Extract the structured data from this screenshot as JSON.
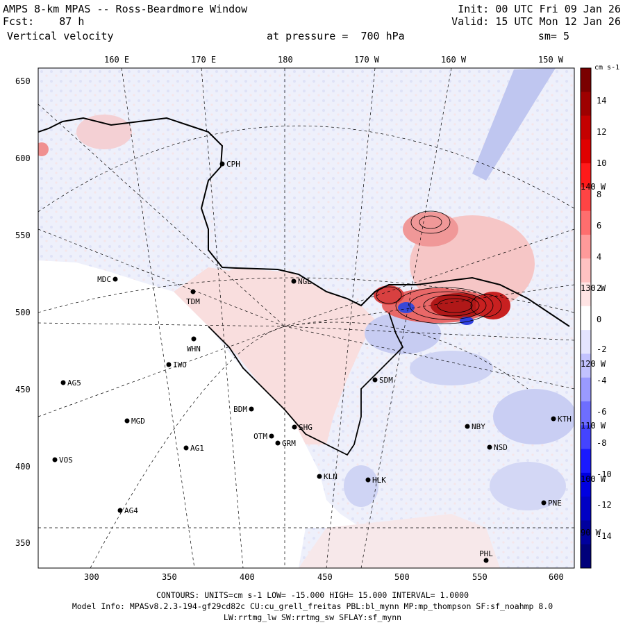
{
  "header": {
    "title": "AMPS 8-km MPAS -- Ross-Beardmore Window",
    "fcst": "Fcst:    87 h",
    "field": "Vertical velocity",
    "init": "Init: 00 UTC Fri 09 Jan 26",
    "valid": "Valid: 15 UTC Mon 12 Jan 26",
    "pressure": "at pressure =  700 hPa",
    "smoothing": "sm= 5"
  },
  "top_lon_labels": [
    "160 E",
    "170 E",
    "180",
    "170 W",
    "160 W",
    "150 W"
  ],
  "right_lon_labels": [
    "140 W",
    "130 W",
    "120 W",
    "110 W",
    "100 W",
    "90 W"
  ],
  "y_ticks": [
    "650",
    "600",
    "550",
    "500",
    "450",
    "400",
    "350"
  ],
  "x_ticks": [
    "300",
    "350",
    "400",
    "450",
    "500",
    "550",
    "600"
  ],
  "colorbar": {
    "units": "cm s-1",
    "labels": [
      "14",
      "12",
      "10",
      "8",
      "6",
      "4",
      "2",
      "0",
      "-2",
      "-4",
      "-6",
      "-8",
      "-10",
      "-12",
      "-14"
    ],
    "colors": [
      "#7a0000",
      "#9e0000",
      "#c40000",
      "#e00000",
      "#ff1a1a",
      "#ff4444",
      "#ff6e6e",
      "#ff9a9a",
      "#ffc2c2",
      "#ffe4e4",
      "#ffffff",
      "#e4e4ff",
      "#c2c2ff",
      "#9a9aff",
      "#6e6eff",
      "#4444ff",
      "#1a1aff",
      "#0000e0",
      "#0000c4",
      "#00009e",
      "#00007a"
    ]
  },
  "stations": [
    {
      "name": "CPH"
    },
    {
      "name": "NGL"
    },
    {
      "name": "MDC"
    },
    {
      "name": "TDM"
    },
    {
      "name": "WHN"
    },
    {
      "name": "IWO"
    },
    {
      "name": "AG5"
    },
    {
      "name": "SDM"
    },
    {
      "name": "BDM"
    },
    {
      "name": "MGD"
    },
    {
      "name": "OTM"
    },
    {
      "name": "SHG"
    },
    {
      "name": "GRM"
    },
    {
      "name": "AG1"
    },
    {
      "name": "VOS"
    },
    {
      "name": "KLN"
    },
    {
      "name": "HLK"
    },
    {
      "name": "NBY"
    },
    {
      "name": "NSD"
    },
    {
      "name": "KTH"
    },
    {
      "name": "AG4"
    },
    {
      "name": "PNE"
    },
    {
      "name": "PHL"
    }
  ],
  "footer": {
    "contours": "CONTOURS:  UNITS=cm s-1  LOW= -15.000      HIGH=  15.000     INTERVAL=    1.0000",
    "model": "Model Info: MPASv8.2.3-194-gf29cd82c CU:cu_grell_freitas PBL:bl_mynn MP:mp_thompson SF:sf_noahmp 8.0",
    "model2": "LW:rrtmg_lw SW:rrtmg_sw SFLAY:sf_mynn"
  }
}
